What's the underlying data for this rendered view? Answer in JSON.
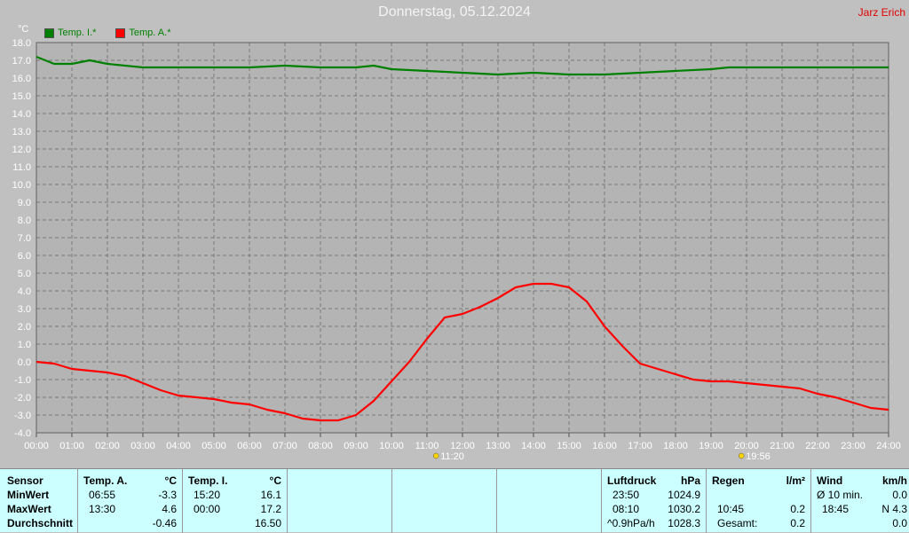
{
  "title": "Donnerstag, 05.12.2024",
  "brand": "Jarz Erich",
  "legend": [
    {
      "label": "Temp. I.*",
      "color": "#008000"
    },
    {
      "label": "Temp. A.*",
      "color": "#ff0000"
    }
  ],
  "chart_data": {
    "type": "line",
    "ylabel": "°C",
    "ylim": [
      -4.0,
      18.0
    ],
    "y_ticks": [
      "18.0",
      "17.0",
      "16.0",
      "15.0",
      "14.0",
      "13.0",
      "12.0",
      "11.0",
      "10.0",
      "9.0",
      "8.0",
      "7.0",
      "6.0",
      "5.0",
      "4.0",
      "3.0",
      "2.0",
      "1.0",
      "0.0",
      "-1.0",
      "-2.0",
      "-3.0",
      "-4.0"
    ],
    "x_ticks": [
      "00:00",
      "01:00",
      "02:00",
      "03:00",
      "04:00",
      "05:00",
      "06:00",
      "07:00",
      "08:00",
      "09:00",
      "10:00",
      "11:00",
      "12:00",
      "13:00",
      "14:00",
      "15:00",
      "16:00",
      "17:00",
      "18:00",
      "19:00",
      "20:00",
      "21:00",
      "22:00",
      "23:00",
      "24:00"
    ],
    "grid": true,
    "markers": [
      {
        "label": "11:20",
        "hour": 11.33,
        "icon": "sunrise-icon"
      },
      {
        "label": "19:56",
        "hour": 19.93,
        "icon": "sunset-icon"
      }
    ],
    "series": [
      {
        "name": "Temp. I.*",
        "color": "#008000",
        "x": [
          0,
          0.5,
          1,
          1.5,
          2,
          3,
          4,
          5,
          6,
          7,
          8,
          9,
          9.5,
          10,
          11,
          12,
          13,
          14,
          15,
          16,
          17,
          18,
          19,
          19.5,
          20,
          21,
          22,
          23,
          24
        ],
        "values": [
          17.2,
          16.8,
          16.8,
          17.0,
          16.8,
          16.6,
          16.6,
          16.6,
          16.6,
          16.7,
          16.6,
          16.6,
          16.7,
          16.5,
          16.4,
          16.3,
          16.2,
          16.3,
          16.2,
          16.2,
          16.3,
          16.4,
          16.5,
          16.6,
          16.6,
          16.6,
          16.6,
          16.6,
          16.6
        ]
      },
      {
        "name": "Temp. A.*",
        "color": "#ff0000",
        "x": [
          0,
          0.5,
          1,
          1.5,
          2,
          2.5,
          3,
          3.5,
          4,
          4.5,
          5,
          5.5,
          6,
          6.5,
          7,
          7.5,
          8,
          8.5,
          9,
          9.5,
          10,
          10.5,
          11,
          11.5,
          12,
          12.5,
          13,
          13.5,
          14,
          14.5,
          15,
          15.5,
          16,
          16.5,
          17,
          17.5,
          18,
          18.5,
          19,
          19.5,
          20,
          20.5,
          21,
          21.5,
          22,
          22.5,
          23,
          23.5,
          24
        ],
        "values": [
          0.0,
          -0.1,
          -0.4,
          -0.5,
          -0.6,
          -0.8,
          -1.2,
          -1.6,
          -1.9,
          -2.0,
          -2.1,
          -2.3,
          -2.4,
          -2.7,
          -2.9,
          -3.2,
          -3.3,
          -3.3,
          -3.0,
          -2.2,
          -1.1,
          0.0,
          1.3,
          2.5,
          2.7,
          3.1,
          3.6,
          4.2,
          4.4,
          4.4,
          4.2,
          3.4,
          2.0,
          0.9,
          -0.1,
          -0.4,
          -0.7,
          -1.0,
          -1.1,
          -1.1,
          -1.2,
          -1.3,
          -1.4,
          -1.5,
          -1.8,
          -2.0,
          -2.3,
          -2.6,
          -2.7
        ]
      }
    ]
  },
  "stats": {
    "sensor_header": "Sensor",
    "row_labels": [
      "MinWert",
      "MaxWert",
      "Durchschnitt"
    ],
    "temp_a": {
      "header": "Temp. A.",
      "unit": "°C",
      "min_time": "06:55",
      "min_value": "-3.3",
      "max_time": "13:30",
      "max_value": "4.6",
      "avg_value": "-0.46"
    },
    "temp_i": {
      "header": "Temp. I.",
      "unit": "°C",
      "min_time": "15:20",
      "min_value": "16.1",
      "max_time": "00:00",
      "max_value": "17.2",
      "avg_value": "16.50"
    },
    "luftdruck": {
      "header": "Luftdruck",
      "unit": "hPa",
      "min_time": "23:50",
      "min_value": "1024.9",
      "max_time": "08:10",
      "max_value": "1030.2",
      "avg_label": "^0.9hPa/h",
      "avg_value": "1028.3"
    },
    "regen": {
      "header": "Regen",
      "unit": "l/m²",
      "max_time": "10:45",
      "max_value": "0.2",
      "total_label": "Gesamt:",
      "total_value": "0.2"
    },
    "wind": {
      "header": "Wind",
      "unit": "km/h",
      "min_label": "Ø 10 min.",
      "min_value": "0.0",
      "max_time": "18:45",
      "max_value": "N 4.3",
      "avg_value": "0.0"
    }
  }
}
